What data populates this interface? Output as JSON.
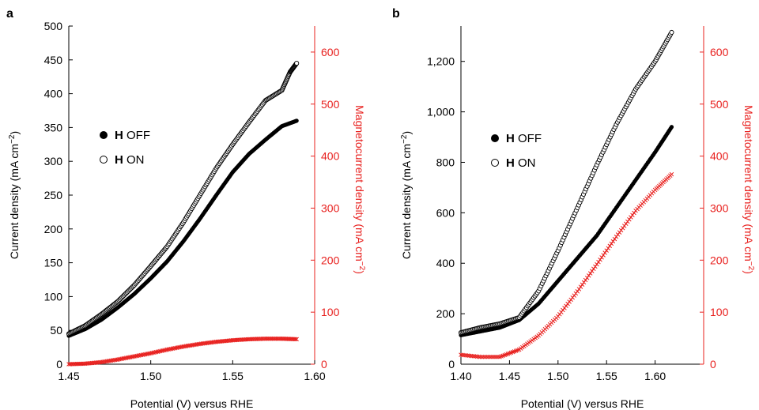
{
  "chart_data": [
    {
      "panel_label": "a",
      "type": "scatter",
      "xlabel": "Potential (V) versus RHE",
      "ylabel": "Current density (mA cm",
      "ylabel_sup": "−2",
      "ylabel_tail": ")",
      "y2label": "Magnetocurrent density (mA cm",
      "y2label_sup": "−2",
      "y2label_tail": ")",
      "xlim": [
        1.45,
        1.6
      ],
      "ylim": [
        0,
        500
      ],
      "y2lim": [
        0,
        650
      ],
      "xticks": [
        1.45,
        1.5,
        1.55,
        1.6
      ],
      "xtick_labels": [
        "1.45",
        "1.50",
        "1.55",
        "1.60"
      ],
      "yticks": [
        0,
        50,
        100,
        150,
        200,
        250,
        300,
        350,
        400,
        450,
        500
      ],
      "ytick_labels": [
        "0",
        "50",
        "100",
        "150",
        "200",
        "250",
        "300",
        "350",
        "400",
        "450",
        "500"
      ],
      "y2ticks": [
        0,
        100,
        200,
        300,
        400,
        500,
        600
      ],
      "y2tick_labels": [
        "0",
        "100",
        "200",
        "300",
        "400",
        "500",
        "600"
      ],
      "legend": [
        {
          "bold": "H",
          "text": " OFF",
          "marker": "filled-circle"
        },
        {
          "bold": "H",
          "text": " ON",
          "marker": "open-circle"
        }
      ],
      "series": [
        {
          "legend_index": 0,
          "marker": "filled-circle",
          "color": "#000000",
          "axis": "left",
          "x": [
            1.45,
            1.46,
            1.47,
            1.48,
            1.49,
            1.5,
            1.51,
            1.52,
            1.53,
            1.54,
            1.55,
            1.56,
            1.57,
            1.58,
            1.589
          ],
          "y": [
            42,
            52,
            66,
            84,
            104,
            127,
            152,
            182,
            215,
            250,
            284,
            311,
            332,
            352,
            360
          ]
        },
        {
          "legend_index": 1,
          "marker": "open-circle",
          "color": "#000000",
          "axis": "left",
          "x": [
            1.45,
            1.46,
            1.47,
            1.48,
            1.49,
            1.5,
            1.51,
            1.52,
            1.53,
            1.54,
            1.55,
            1.56,
            1.57,
            1.58,
            1.585,
            1.589
          ],
          "y": [
            45,
            57,
            74,
            93,
            117,
            145,
            174,
            210,
            250,
            290,
            325,
            358,
            390,
            405,
            432,
            445
          ]
        },
        {
          "marker": "x",
          "color": "#e8201e",
          "axis": "right",
          "x": [
            1.45,
            1.46,
            1.47,
            1.48,
            1.49,
            1.5,
            1.51,
            1.52,
            1.53,
            1.54,
            1.55,
            1.56,
            1.57,
            1.58,
            1.589
          ],
          "y": [
            0,
            1,
            4,
            9,
            15,
            21,
            28,
            34,
            39,
            43,
            46,
            48,
            49,
            49,
            48
          ]
        }
      ]
    },
    {
      "panel_label": "b",
      "type": "scatter",
      "xlabel": "Potential (V) versus RHE",
      "ylabel": "Current density (mA cm",
      "ylabel_sup": "−2",
      "ylabel_tail": ")",
      "y2label": "Magnetocurrent density (mA cm",
      "y2label_sup": "−2",
      "y2label_tail": ")",
      "xlim": [
        1.4,
        1.65
      ],
      "ylim": [
        0,
        1340
      ],
      "y2lim": [
        0,
        650
      ],
      "xticks": [
        1.4,
        1.45,
        1.5,
        1.55,
        1.6
      ],
      "xtick_labels": [
        "1.40",
        "1.45",
        "1.50",
        "1.55",
        "1.60"
      ],
      "yticks": [
        0,
        200,
        400,
        600,
        800,
        1000,
        1200
      ],
      "ytick_labels": [
        "0",
        "200",
        "400",
        "600",
        "800",
        "1,000",
        "1,200"
      ],
      "y2ticks": [
        0,
        100,
        200,
        300,
        400,
        500,
        600
      ],
      "y2tick_labels": [
        "0",
        "100",
        "200",
        "300",
        "400",
        "500",
        "600"
      ],
      "legend": [
        {
          "bold": "H",
          "text": " OFF",
          "marker": "filled-circle"
        },
        {
          "bold": "H",
          "text": " ON",
          "marker": "open-circle"
        }
      ],
      "series": [
        {
          "legend_index": 0,
          "marker": "filled-circle",
          "color": "#000000",
          "axis": "left",
          "x": [
            1.4,
            1.42,
            1.44,
            1.46,
            1.48,
            1.5,
            1.52,
            1.54,
            1.56,
            1.58,
            1.6,
            1.617
          ],
          "y": [
            115,
            130,
            145,
            175,
            240,
            330,
            420,
            510,
            620,
            730,
            840,
            940
          ]
        },
        {
          "legend_index": 1,
          "marker": "open-circle",
          "color": "#000000",
          "axis": "left",
          "x": [
            1.4,
            1.42,
            1.44,
            1.46,
            1.48,
            1.5,
            1.52,
            1.54,
            1.56,
            1.58,
            1.6,
            1.617
          ],
          "y": [
            125,
            145,
            160,
            185,
            290,
            450,
            620,
            790,
            950,
            1090,
            1200,
            1315
          ]
        },
        {
          "marker": "x",
          "color": "#e8201e",
          "axis": "right",
          "x": [
            1.4,
            1.42,
            1.44,
            1.46,
            1.48,
            1.5,
            1.52,
            1.54,
            1.56,
            1.58,
            1.6,
            1.617
          ],
          "y": [
            18,
            14,
            14,
            28,
            55,
            92,
            140,
            192,
            245,
            295,
            335,
            365
          ]
        }
      ]
    }
  ]
}
